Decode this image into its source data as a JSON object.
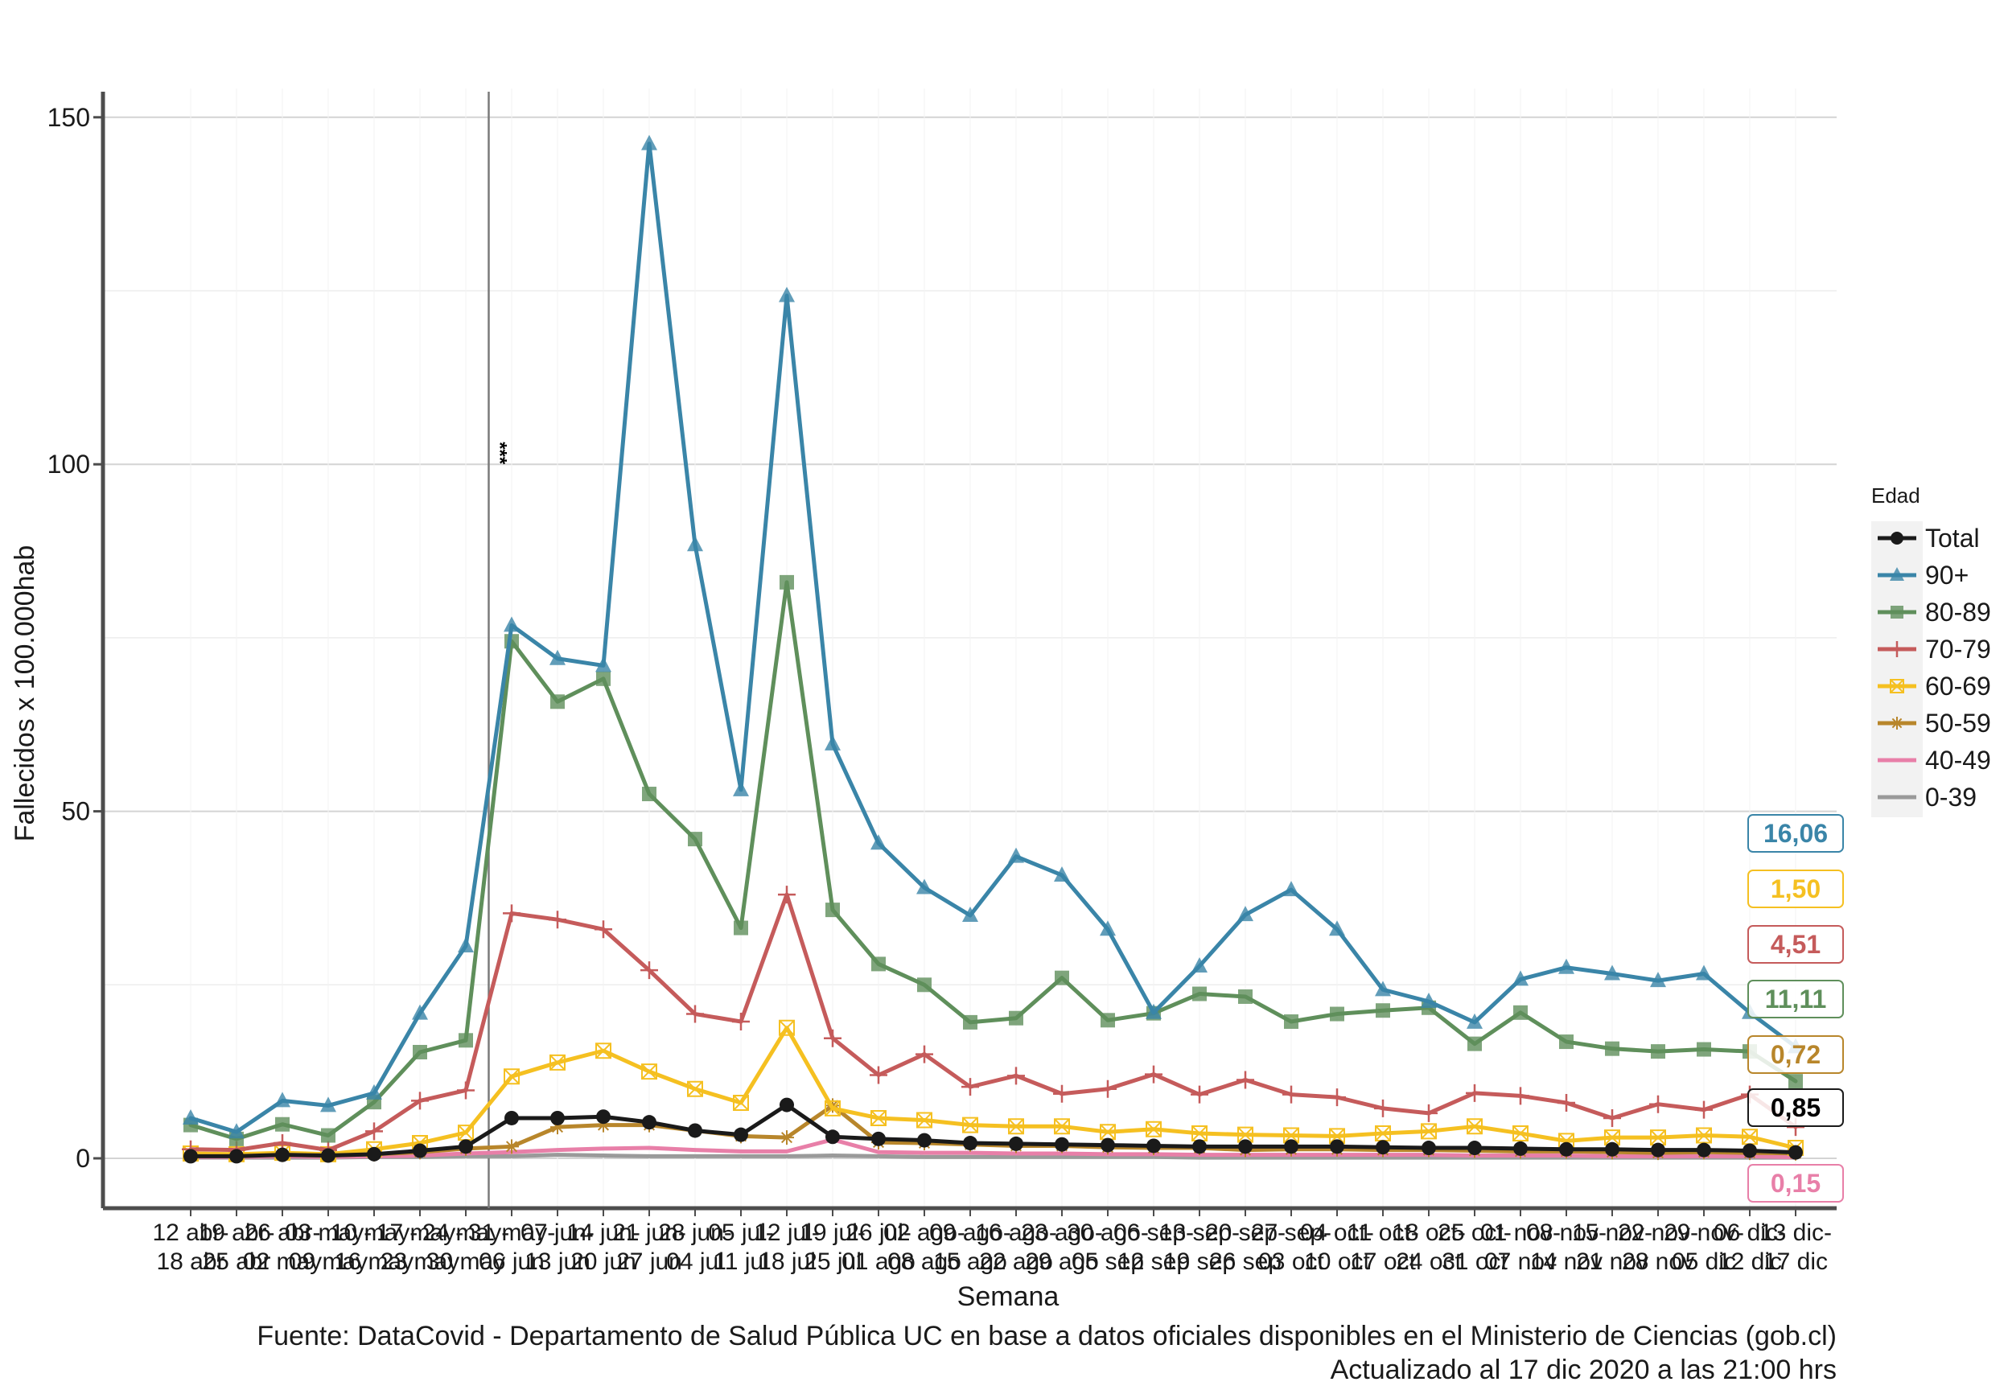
{
  "chart_data": {
    "type": "line",
    "title": "",
    "xlabel": "Semana",
    "ylabel": "Fallecidos x 100.000hab",
    "ylim": [
      -7,
      152
    ],
    "yticks": [
      0,
      50,
      100,
      150
    ],
    "grid": true,
    "legend": {
      "title": "Edad",
      "position": "right"
    },
    "annotation": {
      "text": "***",
      "at_category_index": 6
    },
    "categories": [
      [
        "12 abr-",
        "18 abr"
      ],
      [
        "19 abr-",
        "25 abr"
      ],
      [
        "26 abr-",
        "02 may"
      ],
      [
        "03 may-",
        "09 may"
      ],
      [
        "10 may-",
        "16 may"
      ],
      [
        "17 may-",
        "23 may"
      ],
      [
        "24 may-",
        "30 may"
      ],
      [
        "31 may-",
        "06 jun"
      ],
      [
        "07 jun-",
        "13 jun"
      ],
      [
        "14 jun-",
        "20 jun"
      ],
      [
        "21 jun-",
        "27 jun"
      ],
      [
        "28 jun-",
        "04 jul"
      ],
      [
        "05 jul-",
        "11 jul"
      ],
      [
        "12 jul-",
        "18 jul"
      ],
      [
        "19 jul-",
        "25 jul"
      ],
      [
        "26 jul-",
        "01 ago"
      ],
      [
        "02 ago-",
        "08 ago"
      ],
      [
        "09 ago-",
        "15 ago"
      ],
      [
        "16 ago-",
        "22 ago"
      ],
      [
        "23 ago-",
        "29 ago"
      ],
      [
        "30 ago-",
        "05 sep"
      ],
      [
        "06 sep-",
        "12 sep"
      ],
      [
        "13 sep-",
        "19 sep"
      ],
      [
        "20 sep-",
        "26 sep"
      ],
      [
        "27 sep-",
        "03 oct"
      ],
      [
        "04 oct-",
        "10 oct"
      ],
      [
        "11 oct-",
        "17 oct"
      ],
      [
        "18 oct-",
        "24 oct"
      ],
      [
        "25 oct-",
        "31 oct"
      ],
      [
        "01 nov-",
        "07 nov"
      ],
      [
        "08 nov-",
        "14 nov"
      ],
      [
        "15 nov-",
        "21 nov"
      ],
      [
        "22 nov-",
        "28 nov"
      ],
      [
        "29 nov-",
        "05 dic"
      ],
      [
        "06 dic-",
        "12 dic"
      ],
      [
        "13 dic-",
        "17 dic"
      ]
    ],
    "series": [
      {
        "name": "0-39",
        "color": "#9a9a9a",
        "marker": "none",
        "end_label": "",
        "values": [
          0.1,
          0.1,
          0.1,
          0.1,
          0.2,
          0.2,
          0.3,
          0.3,
          0.5,
          0.4,
          0.3,
          0.3,
          0.3,
          0.3,
          0.4,
          0.3,
          0.2,
          0.2,
          0.2,
          0.2,
          0.2,
          0.2,
          0.1,
          0.1,
          0.1,
          0.1,
          0.1,
          0.1,
          0.1,
          0.1,
          0.1,
          0.1,
          0.1,
          0.1,
          0.1,
          0.1
        ]
      },
      {
        "name": "40-49",
        "color": "#e87fa8",
        "marker": "none",
        "end_label": "0,15",
        "values": [
          0.2,
          0.2,
          0.3,
          0.2,
          0.3,
          0.4,
          0.7,
          0.9,
          1.2,
          1.4,
          1.5,
          1.2,
          1.0,
          1.0,
          2.7,
          0.9,
          0.8,
          0.8,
          0.7,
          0.7,
          0.6,
          0.6,
          0.5,
          0.5,
          0.5,
          0.5,
          0.5,
          0.5,
          0.4,
          0.4,
          0.4,
          0.3,
          0.3,
          0.3,
          0.3,
          0.15
        ]
      },
      {
        "name": "50-59",
        "color": "#b8862b",
        "marker": "asterisk",
        "end_label": "0,72",
        "values": [
          0.5,
          0.4,
          0.5,
          0.4,
          0.6,
          0.9,
          1.4,
          1.7,
          4.5,
          4.8,
          4.8,
          4.0,
          3.2,
          3.0,
          7.6,
          2.3,
          2.2,
          2.0,
          1.8,
          1.8,
          1.6,
          1.5,
          1.5,
          1.2,
          1.3,
          1.3,
          1.2,
          1.2,
          1.1,
          1.0,
          1.0,
          0.9,
          0.8,
          0.9,
          0.8,
          0.72
        ]
      },
      {
        "name": "60-69",
        "color": "#f5c021",
        "marker": "square-x",
        "end_label": "1,50",
        "values": [
          0.7,
          0.6,
          0.8,
          0.6,
          1.3,
          2.2,
          3.7,
          11.8,
          13.8,
          15.5,
          12.5,
          10.0,
          8.0,
          18.8,
          7.2,
          5.8,
          5.5,
          4.8,
          4.6,
          4.6,
          3.8,
          4.2,
          3.6,
          3.4,
          3.3,
          3.2,
          3.6,
          3.9,
          4.6,
          3.6,
          2.5,
          3.0,
          3.0,
          3.3,
          3.1,
          1.5
        ]
      },
      {
        "name": "70-79",
        "color": "#c55b5b",
        "marker": "plus",
        "end_label": "4,51",
        "values": [
          1.3,
          1.2,
          2.2,
          1.2,
          3.9,
          8.3,
          9.8,
          35.3,
          34.4,
          33.0,
          27.1,
          20.8,
          19.7,
          38.0,
          17.3,
          12.0,
          15.0,
          10.3,
          11.9,
          9.3,
          10.0,
          12.1,
          9.2,
          11.3,
          9.2,
          8.8,
          7.2,
          6.5,
          9.4,
          9.0,
          8.0,
          5.8,
          7.8,
          7.0,
          9.2,
          4.51
        ]
      },
      {
        "name": "80-89",
        "color": "#5f8f5b",
        "marker": "square",
        "end_label": "11,11",
        "values": [
          4.8,
          2.8,
          4.9,
          3.3,
          8.1,
          15.3,
          17.0,
          74.5,
          65.8,
          69.1,
          52.5,
          46.0,
          33.2,
          83.0,
          35.8,
          28.0,
          25.0,
          19.6,
          20.2,
          26.0,
          19.9,
          20.9,
          23.7,
          23.3,
          19.7,
          20.8,
          21.3,
          21.7,
          16.5,
          21.0,
          16.8,
          15.8,
          15.4,
          15.7,
          15.4,
          11.11
        ]
      },
      {
        "name": "90+",
        "color": "#3a85a8",
        "marker": "triangle",
        "end_label": "16,06",
        "values": [
          5.8,
          3.8,
          8.3,
          7.6,
          9.4,
          20.9,
          30.6,
          76.8,
          72.0,
          71.0,
          146.2,
          88.4,
          53.1,
          124.3,
          59.7,
          45.4,
          39.0,
          35.0,
          43.5,
          40.8,
          33.0,
          21.0,
          27.7,
          35.1,
          38.7,
          33.0,
          24.3,
          22.6,
          19.6,
          25.8,
          27.5,
          26.6,
          25.6,
          26.6,
          21.0,
          16.06
        ]
      },
      {
        "name": "Total",
        "color": "#1a1a1a",
        "marker": "circle",
        "end_label": "0,85",
        "values": [
          0.3,
          0.3,
          0.5,
          0.4,
          0.6,
          1.1,
          1.7,
          5.8,
          5.8,
          6.0,
          5.2,
          4.0,
          3.4,
          7.7,
          3.1,
          2.8,
          2.6,
          2.2,
          2.1,
          2.0,
          1.9,
          1.8,
          1.7,
          1.7,
          1.7,
          1.7,
          1.6,
          1.5,
          1.5,
          1.4,
          1.3,
          1.3,
          1.2,
          1.2,
          1.1,
          0.85
        ]
      }
    ]
  },
  "caption": {
    "source": "Fuente: DataCovid - Departamento de Salud Pública UC en base a datos oficiales disponibles en el Ministerio de Ciencias (gob.cl)",
    "updated": "Actualizado al 17 dic 2020 a las 21:00 hrs"
  }
}
